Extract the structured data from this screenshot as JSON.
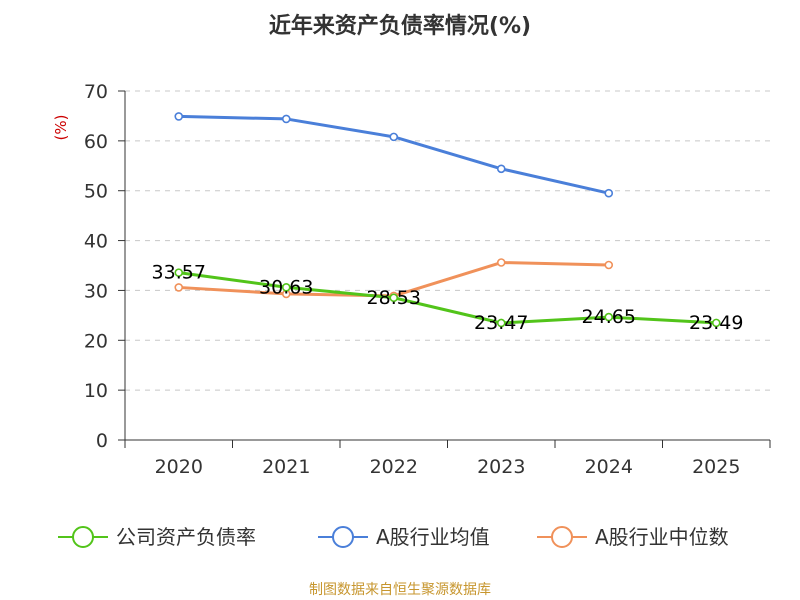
{
  "chart_data": {
    "type": "line",
    "title": "近年来资产负债率情况(%)",
    "ylabel": "(%)",
    "xlabel": "",
    "ylim": [
      0,
      70
    ],
    "yticks": [
      0,
      10,
      20,
      30,
      40,
      50,
      60,
      70
    ],
    "categories": [
      "2020",
      "2021",
      "2022",
      "2023",
      "2024",
      "2025"
    ],
    "grid": true,
    "legend_position": "bottom",
    "series": [
      {
        "name": "公司资产负债率",
        "color": "#52c41a",
        "values": [
          33.57,
          30.63,
          28.53,
          23.47,
          24.65,
          23.49
        ],
        "labels": [
          "33.57",
          "30.63",
          "28.53",
          "23.47",
          "24.65",
          "23.49"
        ]
      },
      {
        "name": "A股行业均值",
        "color": "#4a7fd9",
        "values": [
          64.9,
          64.4,
          60.8,
          54.4,
          49.5,
          null
        ]
      },
      {
        "name": "A股行业中位数",
        "color": "#f0915a",
        "values": [
          30.6,
          29.3,
          28.9,
          35.6,
          35.1,
          null
        ]
      }
    ]
  },
  "source": {
    "text": "制图数据来自恒生聚源数据库",
    "color": "#c7962e"
  },
  "ylabel_color": "#cc0000"
}
